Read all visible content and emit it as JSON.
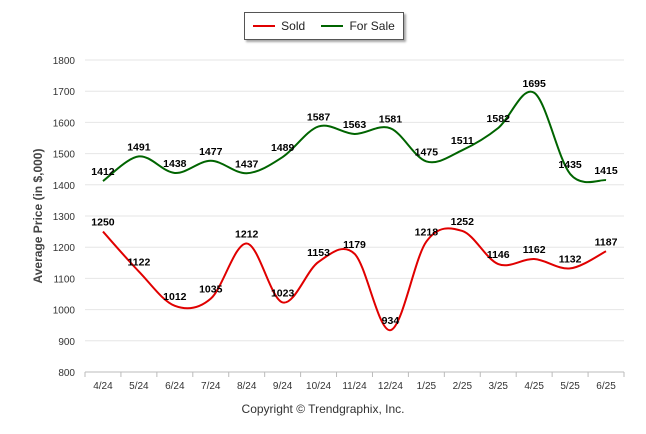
{
  "chart_data": {
    "type": "line",
    "categories": [
      "4/24",
      "5/24",
      "6/24",
      "7/24",
      "8/24",
      "9/24",
      "10/24",
      "11/24",
      "12/24",
      "1/25",
      "2/25",
      "3/25",
      "4/25",
      "5/25",
      "6/25"
    ],
    "series": [
      {
        "name": "Sold",
        "color": "#e00000",
        "values": [
          1250,
          1122,
          1012,
          1035,
          1212,
          1023,
          1153,
          1179,
          934,
          1218,
          1252,
          1146,
          1162,
          1132,
          1187
        ]
      },
      {
        "name": "For Sale",
        "color": "#006400",
        "values": [
          1412,
          1491,
          1438,
          1477,
          1437,
          1489,
          1587,
          1563,
          1581,
          1475,
          1511,
          1582,
          1695,
          1435,
          1415
        ]
      }
    ],
    "xlabel": "",
    "ylabel": "Average Price (in $,000)",
    "ylim": [
      800,
      1800
    ],
    "yticks": [
      800,
      900,
      1000,
      1100,
      1200,
      1300,
      1400,
      1500,
      1600,
      1700,
      1800
    ],
    "grid": true,
    "legend_position": "top-center"
  },
  "legend": [
    {
      "label": "Sold",
      "color": "#e00000"
    },
    {
      "label": "For Sale",
      "color": "#006400"
    }
  ],
  "footer": {
    "copyright": "Copyright © Trendgraphix, Inc."
  }
}
